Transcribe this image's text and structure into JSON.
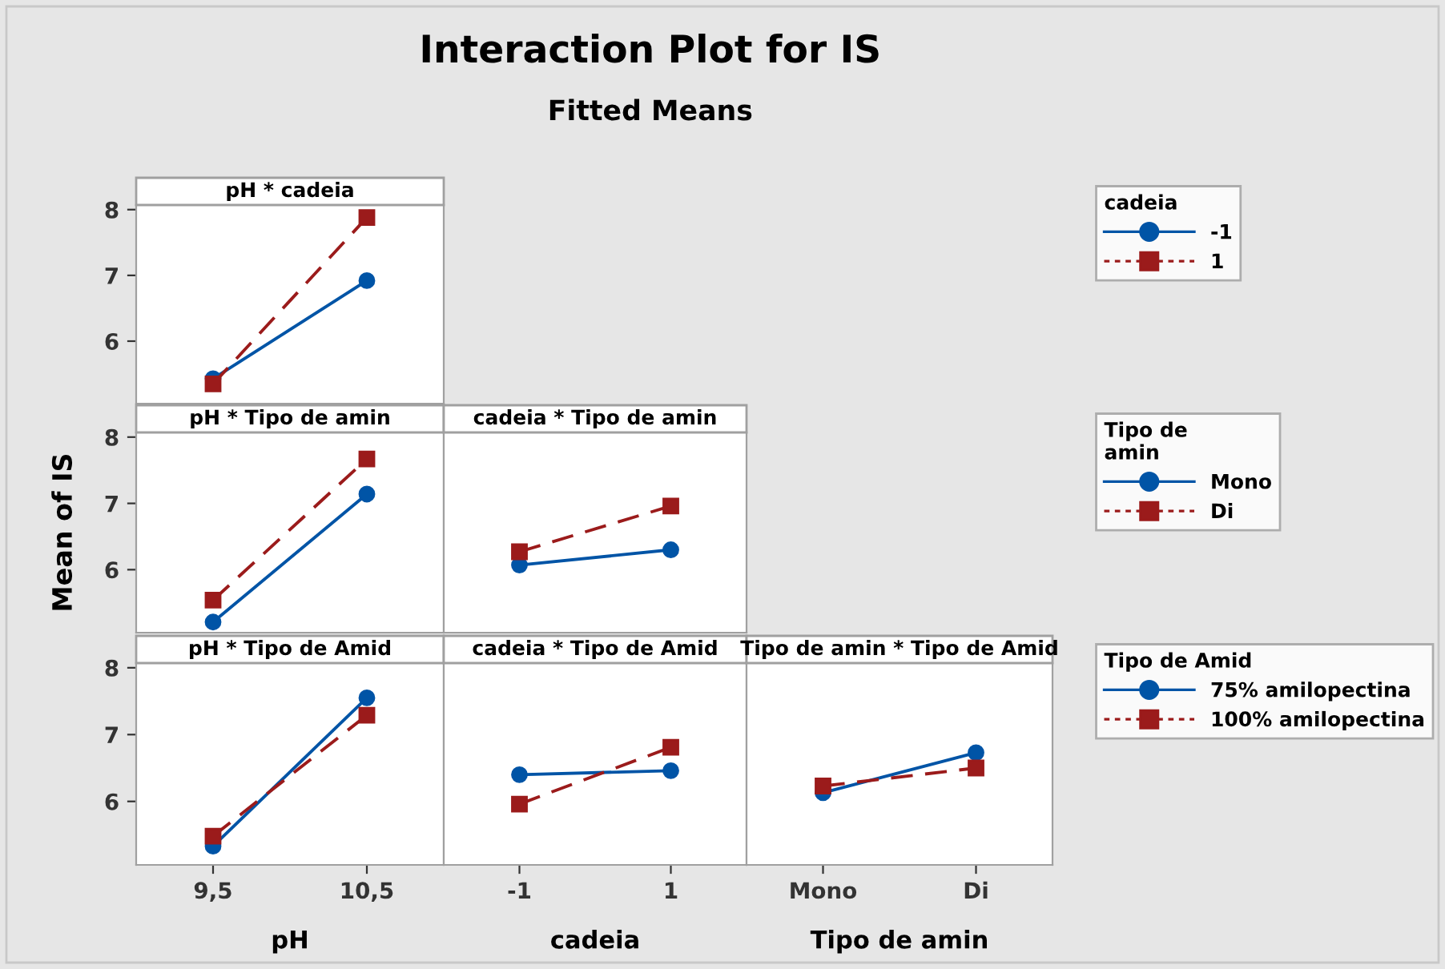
{
  "chart_data": [
    {
      "type": "other",
      "title": "Interaction Plot for IS",
      "subtitle": "Fitted Means"
    },
    {
      "type": "line",
      "title": "pH * cadeia",
      "categories": [
        "9,5",
        "10,5"
      ],
      "ylim": [
        5.05,
        8.07
      ],
      "yticks": [
        6,
        7,
        8
      ],
      "tick_labels": "y",
      "legend": "right",
      "legend_title": "cadeia",
      "grid": false,
      "series": [
        {
          "name": "-1",
          "color": "#0054a6",
          "marker": "circle",
          "line_style": "solid",
          "values": [
            5.43,
            6.92
          ]
        },
        {
          "name": "1",
          "color": "#9b1b1b",
          "marker": "square",
          "line_style": "dashed",
          "values": [
            5.35,
            7.88
          ]
        }
      ]
    },
    {
      "type": "line",
      "title": "pH * Tipo de amin",
      "ylabel": "Mean of IS",
      "categories": [
        "9,5",
        "10,5"
      ],
      "ylim": [
        5.05,
        8.07
      ],
      "yticks": [
        6,
        7,
        8
      ],
      "tick_labels": "y",
      "grid": false,
      "series": [
        {
          "color": "#0054a6",
          "marker": "circle",
          "line_style": "solid",
          "values": [
            5.21,
            7.14
          ]
        },
        {
          "color": "#9b1b1b",
          "marker": "square",
          "line_style": "dashed",
          "values": [
            5.54,
            7.67
          ]
        }
      ]
    },
    {
      "type": "line",
      "title": "cadeia * Tipo de amin",
      "categories": [
        "-1",
        "1"
      ],
      "ylim": [
        5.05,
        8.07
      ],
      "yticks": [
        6,
        7,
        8
      ],
      "tick_labels": false,
      "legend": "right",
      "legend_title": "Tipo de\namin",
      "grid": false,
      "series": [
        {
          "name": "Mono",
          "color": "#0054a6",
          "marker": "circle",
          "line_style": "solid",
          "values": [
            6.07,
            6.3
          ]
        },
        {
          "name": "Di",
          "color": "#9b1b1b",
          "marker": "square",
          "line_style": "dashed",
          "values": [
            6.27,
            6.96
          ]
        }
      ]
    },
    {
      "type": "line",
      "title": "pH * Tipo de Amid",
      "xlabel": "pH",
      "categories": [
        "9,5",
        "10,5"
      ],
      "ylim": [
        5.05,
        8.07
      ],
      "yticks": [
        6,
        7,
        8
      ],
      "grid": false,
      "series": [
        {
          "color": "#0054a6",
          "marker": "circle",
          "line_style": "solid",
          "values": [
            5.33,
            7.55
          ]
        },
        {
          "color": "#9b1b1b",
          "marker": "square",
          "line_style": "dashed",
          "values": [
            5.48,
            7.29
          ]
        }
      ]
    },
    {
      "type": "line",
      "title": "cadeia * Tipo de Amid",
      "xlabel": "cadeia",
      "categories": [
        "-1",
        "1"
      ],
      "ylim": [
        5.05,
        8.07
      ],
      "yticks": [
        6,
        7,
        8
      ],
      "tick_labels": "x",
      "grid": false,
      "series": [
        {
          "color": "#0054a6",
          "marker": "circle",
          "line_style": "solid",
          "values": [
            6.4,
            6.46
          ]
        },
        {
          "color": "#9b1b1b",
          "marker": "square",
          "line_style": "dashed",
          "values": [
            5.96,
            6.81
          ]
        }
      ]
    },
    {
      "type": "line",
      "title": "Tipo de amin * Tipo de Amid",
      "xlabel": "Tipo de amin",
      "categories": [
        "Mono",
        "Di"
      ],
      "ylim": [
        5.05,
        8.07
      ],
      "yticks": [
        6,
        7,
        8
      ],
      "tick_labels": "x",
      "legend": "right",
      "legend_title": "Tipo de Amid",
      "grid": false,
      "series": [
        {
          "name": "75% amilopectina",
          "color": "#0054a6",
          "marker": "circle",
          "line_style": "solid",
          "values": [
            6.13,
            6.73
          ]
        },
        {
          "name": "100% amilopectina",
          "color": "#9b1b1b",
          "marker": "square",
          "line_style": "dashed",
          "values": [
            6.23,
            6.5
          ]
        }
      ]
    }
  ]
}
